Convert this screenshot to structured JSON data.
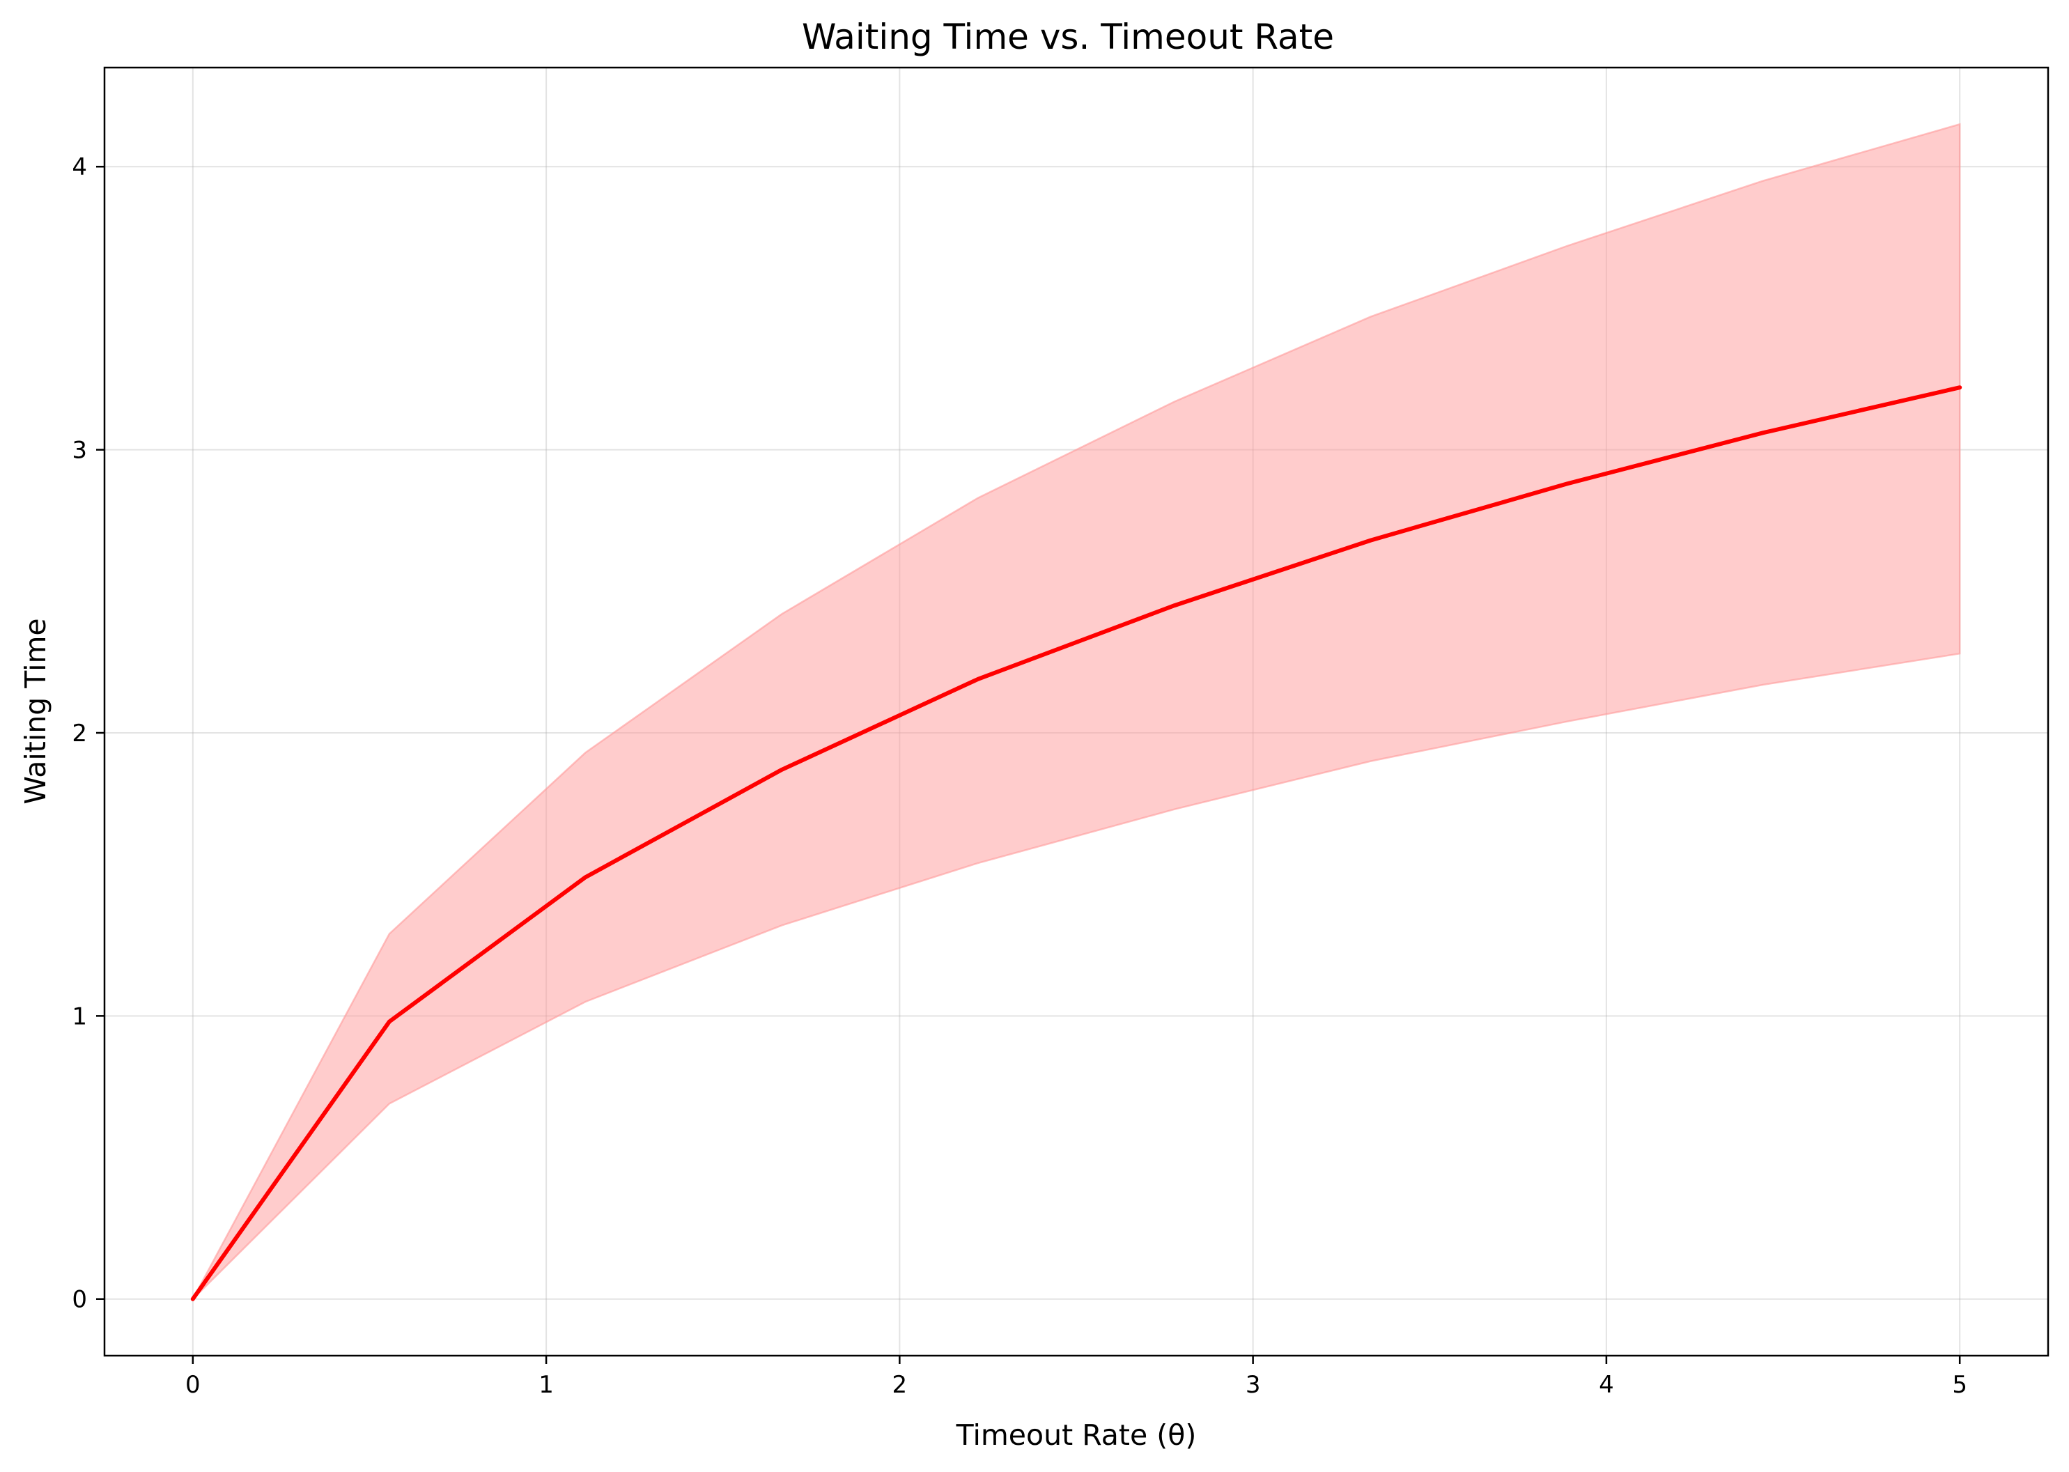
{
  "chart_data": {
    "type": "line",
    "title": "Waiting Time vs. Timeout Rate",
    "xlabel": "Timeout Rate (θ)",
    "ylabel": "Waiting Time",
    "xlim": [
      -0.25,
      5.25
    ],
    "ylim": [
      -0.2,
      4.35
    ],
    "x_ticks": [
      0,
      1,
      2,
      3,
      4,
      5
    ],
    "y_ticks": [
      0,
      1,
      2,
      3,
      4
    ],
    "grid": true,
    "legend": "none",
    "colors": {
      "line": "#ff0000",
      "band": "#ff9999"
    },
    "series": [
      {
        "x": [
          0,
          0.556,
          1.111,
          1.667,
          2.222,
          2.778,
          3.333,
          3.889,
          4.444,
          5.0
        ],
        "values": [
          0,
          0.98,
          1.49,
          1.87,
          2.19,
          2.45,
          2.68,
          2.88,
          3.06,
          3.22
        ],
        "band_lower": [
          0,
          0.69,
          1.05,
          1.32,
          1.54,
          1.73,
          1.9,
          2.04,
          2.17,
          2.28
        ],
        "band_upper": [
          0,
          1.29,
          1.93,
          2.42,
          2.83,
          3.17,
          3.47,
          3.72,
          3.95,
          4.15
        ]
      }
    ]
  }
}
